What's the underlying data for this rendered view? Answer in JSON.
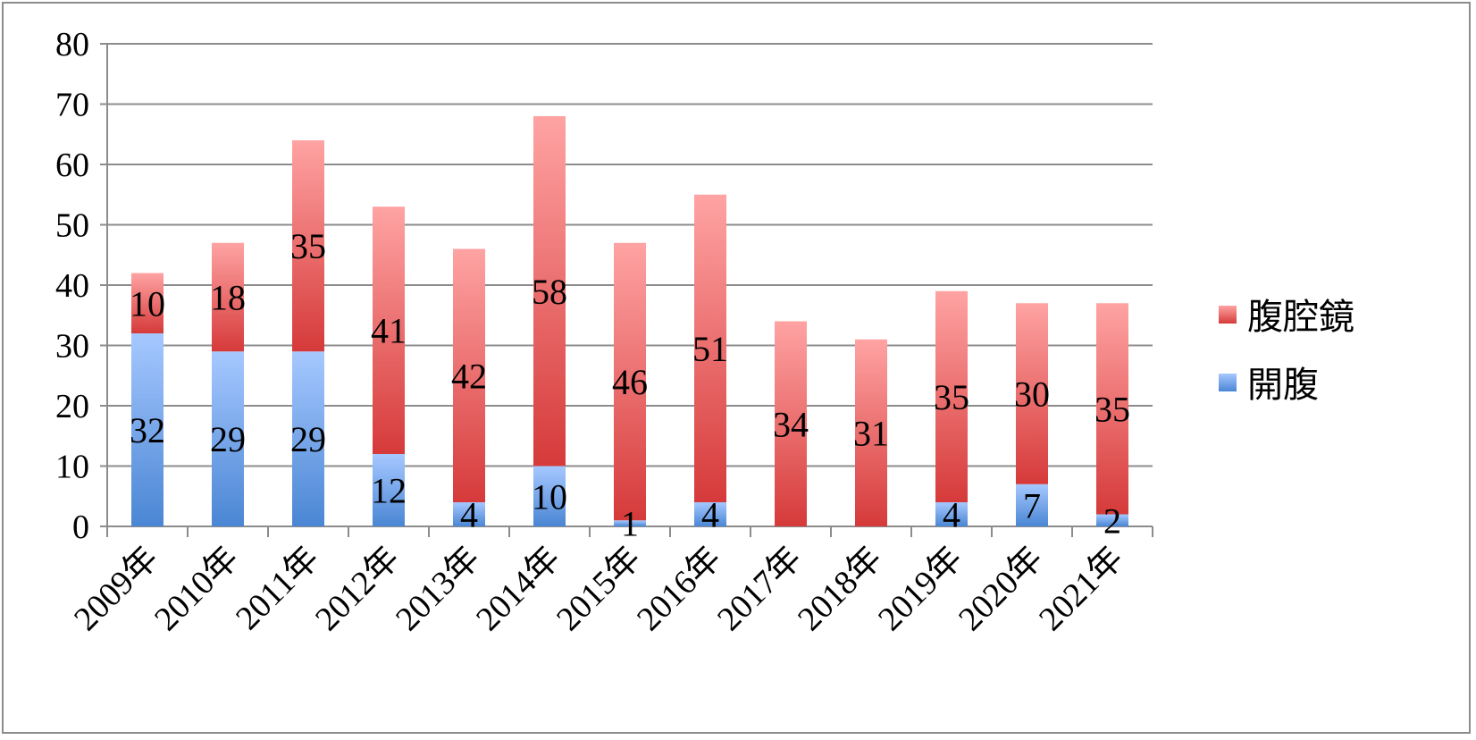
{
  "chart_data": {
    "type": "bar",
    "stacked": true,
    "categories": [
      "2009年",
      "2010年",
      "2011年",
      "2012年",
      "2013年",
      "2014年",
      "2015年",
      "2016年",
      "2017年",
      "2018年",
      "2019年",
      "2020年",
      "2021年"
    ],
    "series": [
      {
        "name": "開腹",
        "values": [
          32,
          29,
          29,
          12,
          4,
          10,
          1,
          4,
          0,
          0,
          4,
          7,
          2
        ],
        "color": "#4a86d4",
        "color_light": "#a6c8ff"
      },
      {
        "name": "腹腔鏡",
        "values": [
          10,
          18,
          35,
          41,
          42,
          58,
          46,
          51,
          34,
          31,
          35,
          30,
          35
        ],
        "color": "#d63a3a",
        "color_light": "#ffa3a3"
      }
    ],
    "data_labels": [
      {
        "series": "開腹",
        "labels": [
          "32",
          "29",
          "29",
          "12",
          "4",
          "10",
          "1",
          "4",
          "",
          "",
          "4",
          "7",
          "2"
        ]
      },
      {
        "series": "腹腔鏡",
        "labels": [
          "10",
          "18",
          "35",
          "41",
          "42",
          "58",
          "46",
          "51",
          "34",
          "31",
          "35",
          "30",
          "35"
        ]
      }
    ],
    "title": "",
    "xlabel": "",
    "ylabel": "",
    "ylim": [
      0,
      80
    ],
    "yticks": [
      "0",
      "10",
      "20",
      "30",
      "40",
      "50",
      "60",
      "70",
      "80"
    ],
    "grid": true,
    "legend": {
      "position": "right",
      "order": [
        "腹腔鏡",
        "開腹"
      ]
    }
  }
}
